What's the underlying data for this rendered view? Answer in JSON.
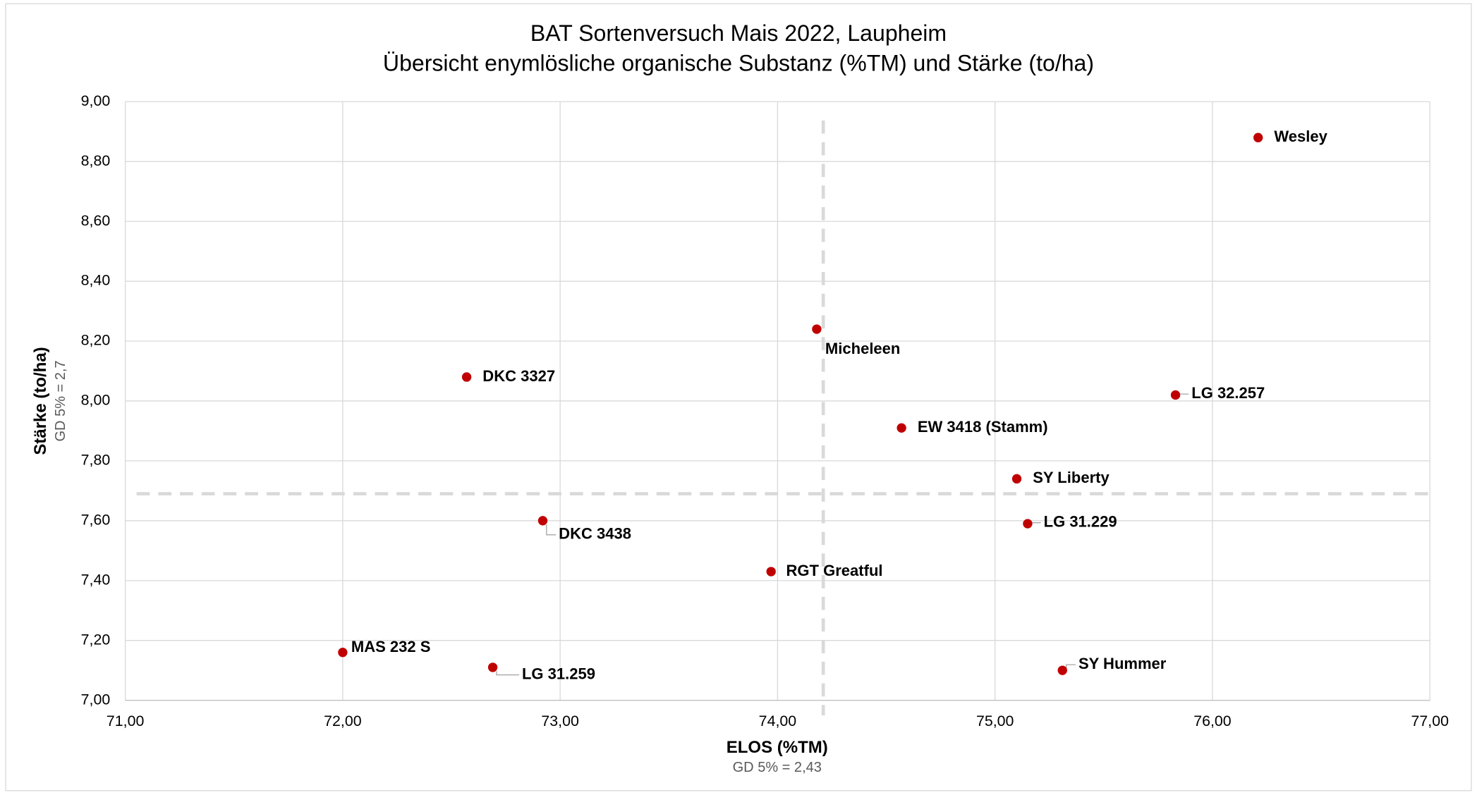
{
  "chart_data": {
    "type": "scatter",
    "title": "BAT Sortenversuch Mais 2022, Laupheim",
    "subtitle": "Übersicht enymlösliche organische Substanz (%TM) und Stärke (to/ha)",
    "x_label": "ELOS (%TM)",
    "x_note": "GD 5% = 2,43",
    "y_label": "Stärke (to/ha)",
    "y_note": "GD 5% = 2,7",
    "color": "#c00000",
    "grid": true,
    "xlim": [
      71,
      77
    ],
    "ylim": [
      7,
      9
    ],
    "xticks": [
      {
        "value": 71,
        "label": "71,00"
      },
      {
        "value": 72,
        "label": "72,00"
      },
      {
        "value": 73,
        "label": "73,00"
      },
      {
        "value": 74,
        "label": "74,00"
      },
      {
        "value": 75,
        "label": "75,00"
      },
      {
        "value": 76,
        "label": "76,00"
      },
      {
        "value": 77,
        "label": "77,00"
      }
    ],
    "yticks": [
      {
        "value": 7,
        "label": "7,00"
      },
      {
        "value": 7.2,
        "label": "7,20"
      },
      {
        "value": 7.4,
        "label": "7,40"
      },
      {
        "value": 7.6,
        "label": "7,60"
      },
      {
        "value": 7.8,
        "label": "7,80"
      },
      {
        "value": 8,
        "label": "8,00"
      },
      {
        "value": 8.2,
        "label": "8,20"
      },
      {
        "value": 8.4,
        "label": "8,40"
      },
      {
        "value": 8.6,
        "label": "8,60"
      },
      {
        "value": 8.8,
        "label": "8,80"
      },
      {
        "value": 9,
        "label": "9,00"
      }
    ],
    "reference_x": 74.21,
    "reference_y": 7.69,
    "labels": [
      "Wesley",
      "Micheleen",
      "DKC 3327",
      "LG 32.257",
      "EW 3418 (Stamm)",
      "SY Liberty",
      "LG 31.229",
      "DKC 3438",
      "RGT Greatful",
      "MAS 232 S",
      "LG 31.259",
      "SY Hummer"
    ],
    "x": [
      76.21,
      74.18,
      72.57,
      75.83,
      74.57,
      75.1,
      75.15,
      72.92,
      73.97,
      72.0,
      72.69,
      75.31
    ],
    "values": [
      8.88,
      8.24,
      8.08,
      8.02,
      7.91,
      7.74,
      7.59,
      7.6,
      7.43,
      7.16,
      7.11,
      7.1
    ]
  }
}
